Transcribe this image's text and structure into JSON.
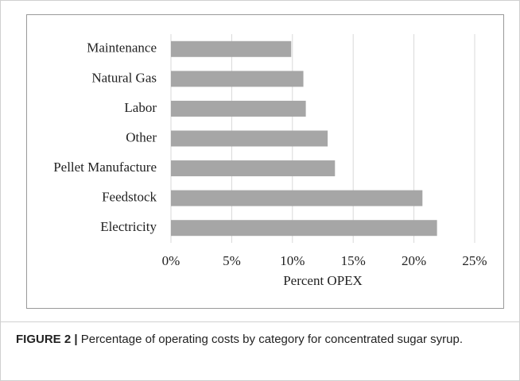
{
  "chart_data": {
    "type": "bar",
    "orientation": "horizontal",
    "categories": [
      "Maintenance",
      "Natural Gas",
      "Labor",
      "Other",
      "Pellet Manufacture",
      "Feedstock",
      "Electricity"
    ],
    "values": [
      9.9,
      10.9,
      11.1,
      12.9,
      13.5,
      20.7,
      21.9
    ],
    "color": "#a6a6a6",
    "xlabel": "Percent OPEX",
    "xlim": [
      0,
      25
    ],
    "xticks": [
      {
        "value": 0,
        "label": "0%"
      },
      {
        "value": 5,
        "label": "5%"
      },
      {
        "value": 10,
        "label": "10%"
      },
      {
        "value": 15,
        "label": "15%"
      },
      {
        "value": 20,
        "label": "20%"
      },
      {
        "value": 25,
        "label": "25%"
      }
    ],
    "grid": true
  },
  "caption": {
    "label": "FIGURE 2 |",
    "text": "Percentage of operating costs by category for concentrated sugar syrup."
  }
}
